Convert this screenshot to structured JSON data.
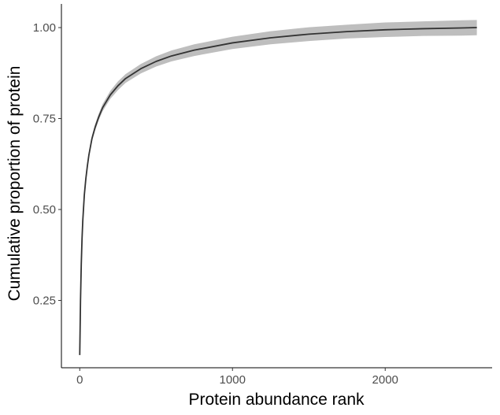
{
  "chart_data": {
    "type": "line",
    "title": "",
    "xlabel": "Protein abundance rank",
    "ylabel": "Cumulative proportion of protein",
    "xlim": [
      -120,
      2700
    ],
    "ylim": [
      0.065,
      1.065
    ],
    "x_ticks": [
      0,
      1000,
      2000
    ],
    "x_tick_labels": [
      "0",
      "1000",
      "2000"
    ],
    "y_ticks": [
      0.25,
      0.5,
      0.75,
      1.0
    ],
    "y_tick_labels": [
      "0.25",
      "0.50",
      "0.75",
      "1.00"
    ],
    "grid": false,
    "legend": "none",
    "series": [
      {
        "x": [
          0,
          5,
          10,
          15,
          20,
          30,
          40,
          50,
          60,
          80,
          100,
          125,
          150,
          200,
          250,
          300,
          400,
          500,
          600,
          750,
          1000,
          1250,
          1500,
          1750,
          2000,
          2250,
          2500,
          2600
        ],
        "y": [
          0.1,
          0.25,
          0.35,
          0.42,
          0.47,
          0.54,
          0.585,
          0.62,
          0.65,
          0.695,
          0.725,
          0.755,
          0.78,
          0.815,
          0.84,
          0.86,
          0.887,
          0.907,
          0.922,
          0.938,
          0.958,
          0.972,
          0.982,
          0.989,
          0.994,
          0.997,
          0.999,
          1.0
        ],
        "band": [
          0.0,
          0.003,
          0.004,
          0.005,
          0.006,
          0.006,
          0.007,
          0.007,
          0.008,
          0.008,
          0.009,
          0.009,
          0.01,
          0.011,
          0.012,
          0.012,
          0.013,
          0.014,
          0.015,
          0.016,
          0.017,
          0.018,
          0.019,
          0.019,
          0.02,
          0.02,
          0.021,
          0.021
        ]
      }
    ],
    "colors": {
      "line": "#333333",
      "band": "#bebebe",
      "axis": "#000000"
    }
  }
}
